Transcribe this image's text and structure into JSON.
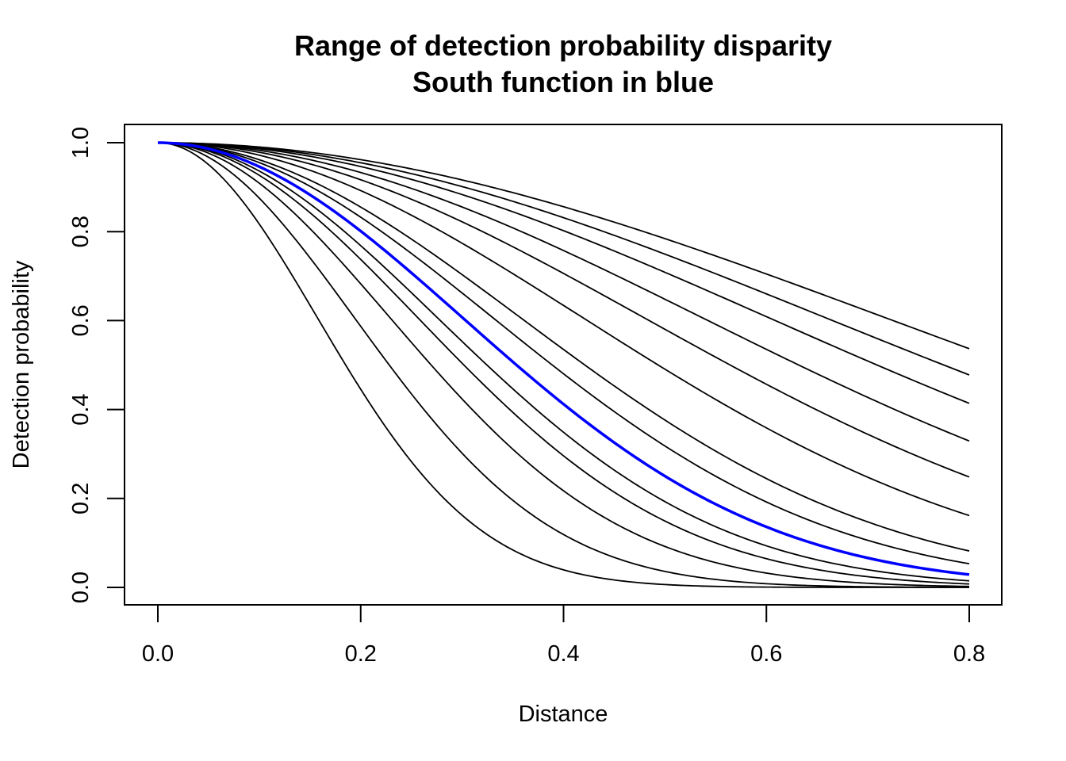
{
  "chart_data": {
    "type": "line",
    "title": "Range of detection probability disparity",
    "subtitle": "South function in blue",
    "xlabel": "Distance",
    "ylabel": "Detection probability",
    "xlim": [
      0.0,
      0.8
    ],
    "ylim": [
      0.0,
      1.0
    ],
    "xticks": [
      "0.0",
      "0.2",
      "0.4",
      "0.6",
      "0.8"
    ],
    "yticks": [
      "0.0",
      "0.2",
      "0.4",
      "0.6",
      "0.8",
      "1.0"
    ],
    "grid": false,
    "legend": "none",
    "function": "half-normal: p(d) = exp(-d^2 / (2 * sigma^2))",
    "x": [
      0.0,
      0.8
    ],
    "series": [
      {
        "sigma": 0.1573,
        "color": "#000000",
        "values_at_x_max": 0.0
      },
      {
        "sigma": 0.1938,
        "color": "#000000",
        "values_at_x_max": 0.0002
      },
      {
        "sigma": 0.2289,
        "color": "#000000",
        "values_at_x_max": 0.0022
      },
      {
        "sigma": 0.2563,
        "color": "#000000",
        "values_at_x_max": 0.0076
      },
      {
        "sigma": 0.2756,
        "color": "#000000",
        "values_at_x_max": 0.0148
      },
      {
        "sigma": 0.3004,
        "color": "#0000ff",
        "values_at_x_max": 0.0289
      },
      {
        "sigma": 0.3303,
        "color": "#000000",
        "values_at_x_max": 0.0533
      },
      {
        "sigma": 0.3576,
        "color": "#000000",
        "values_at_x_max": 0.0819
      },
      {
        "sigma": 0.419,
        "color": "#000000",
        "values_at_x_max": 0.1615
      },
      {
        "sigma": 0.4793,
        "color": "#000000",
        "values_at_x_max": 0.2483
      },
      {
        "sigma": 0.5367,
        "color": "#000000",
        "values_at_x_max": 0.329
      },
      {
        "sigma": 0.6023,
        "color": "#000000",
        "values_at_x_max": 0.4137
      },
      {
        "sigma": 0.6582,
        "color": "#000000",
        "values_at_x_max": 0.4779
      },
      {
        "sigma": 0.7172,
        "color": "#000000",
        "values_at_x_max": 0.5367
      }
    ]
  }
}
